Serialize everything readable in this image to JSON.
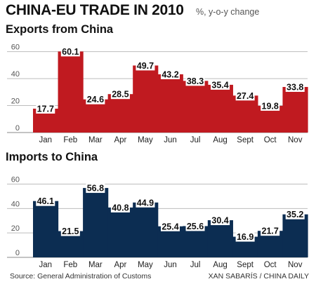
{
  "title": "CHINA-EU TRADE IN 2010",
  "subtitle": "%, y-o-y change",
  "source": "Source: General Administration of Customs",
  "credit": "XAN SABARÍS / CHINA DAILY",
  "colors": {
    "exports": "#c01a20",
    "imports": "#0c2d52",
    "gridline": "#bdbdbd",
    "baseline": "#888888"
  },
  "chart_data": [
    {
      "type": "bar",
      "title": "Exports from China",
      "categories": [
        "Jan",
        "Feb",
        "Mar",
        "Apr",
        "May",
        "Jun",
        "Jul",
        "Aug",
        "Sept",
        "Oct",
        "Nov"
      ],
      "values": [
        17.7,
        60.1,
        24.6,
        28.5,
        49.7,
        43.2,
        38.3,
        35.4,
        27.4,
        19.8,
        33.8
      ],
      "ylim": [
        0,
        65
      ],
      "yticks": [
        0,
        20,
        40,
        60
      ],
      "grid": true
    },
    {
      "type": "bar",
      "title": "Imports to China",
      "categories": [
        "Jan",
        "Feb",
        "Mar",
        "Apr",
        "May",
        "Jun",
        "Jul",
        "Aug",
        "Sept",
        "Oct",
        "Nov"
      ],
      "values": [
        46.1,
        21.5,
        56.8,
        40.8,
        44.9,
        25.4,
        25.6,
        30.4,
        16.9,
        21.7,
        35.2
      ],
      "ylim": [
        0,
        62
      ],
      "yticks": [
        0,
        20,
        40,
        60
      ],
      "grid": true
    }
  ]
}
